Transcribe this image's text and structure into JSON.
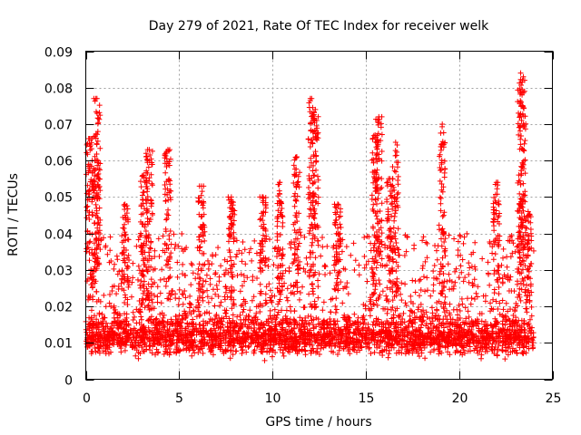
{
  "chart_data": {
    "type": "scatter",
    "title": "Day 279 of 2021, Rate Of TEC Index for receiver welk",
    "xlabel": "GPS time / hours",
    "ylabel": "ROTI / TECUs",
    "xlim": [
      0,
      25
    ],
    "ylim": [
      0,
      0.09
    ],
    "xticks": [
      "0",
      "5",
      "10",
      "15",
      "20",
      "25"
    ],
    "xtick_values": [
      0,
      5,
      10,
      15,
      20,
      25
    ],
    "yticks": [
      "0",
      "0.01",
      "0.02",
      "0.03",
      "0.04",
      "0.05",
      "0.06",
      "0.07",
      "0.08",
      "0.09"
    ],
    "ytick_values": [
      0,
      0.01,
      0.02,
      0.03,
      0.04,
      0.05,
      0.06,
      0.07,
      0.08,
      0.09
    ],
    "grid": true,
    "marker": "+",
    "color": "#ff0000",
    "x_range_data": [
      0,
      24
    ],
    "baseline_roti": 0.01,
    "typical_band": [
      0.005,
      0.02
    ],
    "min_observed": 0.002,
    "peaks": [
      {
        "x": 0.2,
        "y": 0.066
      },
      {
        "x": 0.6,
        "y": 0.077
      },
      {
        "x": 0.5,
        "y": 0.06
      },
      {
        "x": 2.1,
        "y": 0.048
      },
      {
        "x": 3.1,
        "y": 0.056
      },
      {
        "x": 3.4,
        "y": 0.063
      },
      {
        "x": 4.4,
        "y": 0.063
      },
      {
        "x": 6.2,
        "y": 0.053
      },
      {
        "x": 7.8,
        "y": 0.05
      },
      {
        "x": 9.5,
        "y": 0.05
      },
      {
        "x": 10.4,
        "y": 0.054
      },
      {
        "x": 11.3,
        "y": 0.061
      },
      {
        "x": 12.1,
        "y": 0.077
      },
      {
        "x": 12.3,
        "y": 0.074
      },
      {
        "x": 13.5,
        "y": 0.048
      },
      {
        "x": 15.5,
        "y": 0.067
      },
      {
        "x": 15.7,
        "y": 0.072
      },
      {
        "x": 16.3,
        "y": 0.055
      },
      {
        "x": 16.6,
        "y": 0.065
      },
      {
        "x": 19.1,
        "y": 0.07
      },
      {
        "x": 22.0,
        "y": 0.054
      },
      {
        "x": 23.3,
        "y": 0.084
      },
      {
        "x": 23.4,
        "y": 0.082
      },
      {
        "x": 23.7,
        "y": 0.046
      }
    ]
  }
}
